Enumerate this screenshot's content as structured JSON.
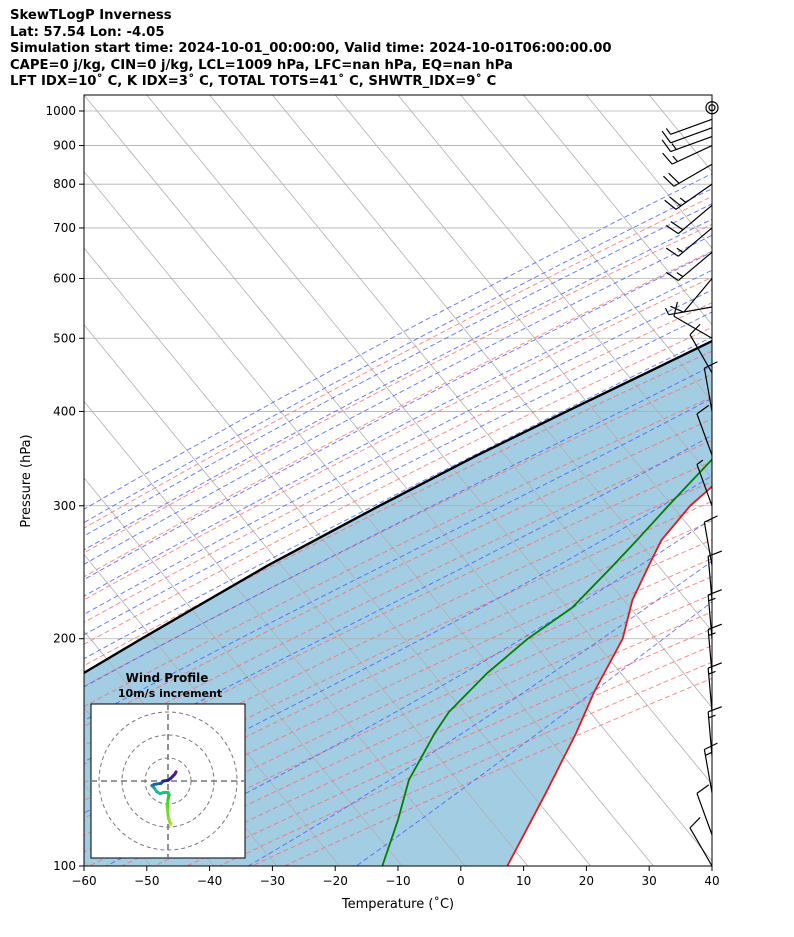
{
  "header": {
    "line1": "SkewTLogP Inverness",
    "line2": "Lat: 57.54   Lon: -4.05",
    "line3": "Simulation start time: 2024-10-01_00:00:00, Valid time: 2024-10-01T06:00:00.00",
    "line4": "CAPE=0 j/kg, CIN=0 j/kg, LCL=1009 hPa, LFC=nan hPa, EQ=nan hPa",
    "line5": "LFT IDX=10˚ C, K IDX=3˚ C, TOTAL TOTS=41˚ C, SHWTR_IDX=9˚ C"
  },
  "chart_data": {
    "type": "line",
    "title": "SkewTLogP Inverness",
    "xlabel": "Temperature (˚C)",
    "ylabel": "Pressure (hPa)",
    "xlim": [
      -60,
      40
    ],
    "ylim": [
      1050,
      100
    ],
    "y_scale": "log",
    "grid": true,
    "xticks": [
      "−60",
      "−50",
      "−40",
      "−30",
      "−20",
      "−10",
      "0",
      "10",
      "20",
      "30",
      "40"
    ],
    "yticks": [
      "100",
      "200",
      "300",
      "400",
      "500",
      "600",
      "700",
      "800",
      "900",
      "1000"
    ],
    "colors": {
      "temperature": "#e31a1c",
      "dewpoint": "#008000",
      "parcel": "#000000",
      "shade": "#9ecae1",
      "dry_adiabat": "#ff6b6b",
      "moist_adiabat": "#4a5cff",
      "mixing_ratio": "#9b30c8",
      "isotherm": "#b0b0b0"
    },
    "series": [
      {
        "name": "temperature",
        "p": [
          1010,
          1000,
          985,
          960,
          925,
          900,
          850,
          800,
          750,
          700,
          650,
          600,
          550,
          500,
          450,
          400,
          350,
          300,
          270,
          250,
          225,
          200,
          170,
          150,
          125,
          100
        ],
        "t": [
          9,
          9.5,
          9.8,
          8.5,
          7.0,
          6.3,
          5.8,
          7.1,
          7.6,
          7.1,
          6.5,
          5.4,
          3.7,
          1.2,
          -2.1,
          -5.0,
          -8.0,
          -10.5,
          -10.6,
          -9.3,
          -7.4,
          -3.9,
          -1.5,
          1.0,
          4.0,
          7.4
        ]
      },
      {
        "name": "dewpoint",
        "p": [
          1010,
          1000,
          985,
          960,
          925,
          900,
          850,
          800,
          780,
          750,
          720,
          700,
          680,
          650,
          620,
          600,
          550,
          500,
          450,
          420,
          400,
          350,
          300,
          270,
          250,
          220,
          200,
          180,
          160,
          150,
          130,
          115,
          100
        ],
        "t": [
          9,
          8.6,
          8.0,
          7.0,
          6.0,
          5.5,
          5.5,
          0.0,
          -6.0,
          -10.0,
          -12.0,
          -10.5,
          -9.0,
          -5.0,
          -2.5,
          -0.5,
          -2.0,
          -4.8,
          -9.0,
          -11.5,
          -12.0,
          -13.0,
          -14.0,
          -14.5,
          -15.0,
          -16.0,
          -19.0,
          -21.0,
          -22.0,
          -21.5,
          -19.5,
          -16.0,
          -12.5
        ]
      },
      {
        "name": "parcel",
        "p": [
          1010,
          1000,
          950,
          900,
          850,
          800,
          750,
          700,
          650,
          600,
          550,
          500,
          450,
          400,
          350,
          300,
          250,
          200,
          150,
          100
        ],
        "t": [
          8.6,
          8.2,
          6.1,
          3.8,
          1.3,
          -1.5,
          -4.7,
          -8.3,
          -12.3,
          -16.8,
          -22.0,
          -28.0,
          -34.8,
          -42.5,
          -51.0,
          -60.0,
          -70.0,
          -80.5,
          -93.5,
          -109.0
        ]
      }
    ],
    "wind_barbs": {
      "p": [
        1010,
        975,
        950,
        925,
        900,
        850,
        800,
        750,
        700,
        650,
        600,
        550,
        500,
        450,
        400,
        350,
        300,
        250,
        225,
        200,
        180,
        160,
        140,
        125,
        110,
        100
      ],
      "speed_kt": [
        3,
        8,
        12,
        15,
        18,
        22,
        25,
        20,
        18,
        15,
        10,
        8,
        10,
        12,
        14,
        10,
        8,
        12,
        14,
        15,
        16,
        18,
        15,
        15,
        10,
        10
      ],
      "direction_deg": [
        200,
        250,
        250,
        250,
        245,
        240,
        235,
        230,
        230,
        230,
        220,
        260,
        300,
        330,
        350,
        340,
        340,
        350,
        355,
        355,
        355,
        355,
        355,
        350,
        340,
        330
      ]
    },
    "hodograph": {
      "title": "Wind Profile",
      "subtitle": "10m/s increment",
      "u": [
        1,
        1.3,
        0.8,
        0,
        -0.3,
        0,
        0.5,
        0,
        -2,
        -3.5,
        -5,
        -6,
        -7,
        -6,
        -3,
        -2,
        0,
        1,
        2,
        3,
        3.5
      ],
      "v": [
        -19,
        -18.5,
        -18,
        -15,
        -11,
        -8,
        -6,
        -5,
        -5,
        -5.5,
        -4.5,
        -3,
        -2,
        -1.5,
        -1,
        0,
        0.3,
        1,
        2,
        3,
        4
      ]
    }
  }
}
